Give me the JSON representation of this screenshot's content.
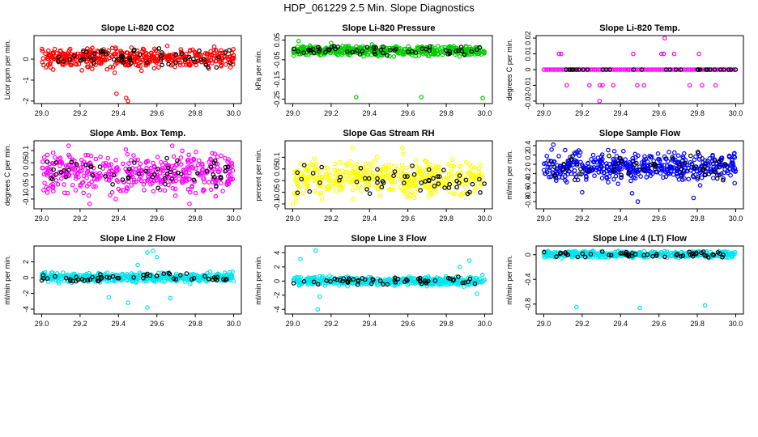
{
  "title": "HDP_061229  2.5 Min. Slope Diagnostics",
  "chart_data": [
    {
      "type": "scatter",
      "title": "Slope Li-820 CO2",
      "ylabel": "Licor ppm per min.",
      "color": "#ff0000",
      "xlim": [
        29.0,
        30.0
      ],
      "ylim": [
        -2.0,
        1.0
      ],
      "xticks": [
        29.0,
        29.2,
        29.4,
        29.6,
        29.8,
        30.0
      ],
      "yticks": [
        -2,
        -1,
        0
      ],
      "band": [
        -0.55,
        0.7
      ],
      "n": 420,
      "outliers": [
        [
          29.06,
          -0.5
        ],
        [
          29.38,
          -0.65
        ],
        [
          29.39,
          -1.65
        ],
        [
          29.44,
          -1.85
        ],
        [
          29.45,
          -2.0
        ],
        [
          29.52,
          -0.55
        ]
      ]
    },
    {
      "type": "scatter",
      "title": "Slope Li-820 Pressure",
      "ylabel": "kPa per min.",
      "color": "#00cc00",
      "xlim": [
        29.0,
        30.0
      ],
      "ylim": [
        -0.26,
        0.06
      ],
      "xticks": [
        29.0,
        29.2,
        29.4,
        29.6,
        29.8,
        30.0
      ],
      "yticks": [
        0.05,
        -0.05,
        -0.15,
        -0.25
      ],
      "band": [
        -0.04,
        0.03
      ],
      "n": 420,
      "outliers": [
        [
          29.33,
          -0.24
        ],
        [
          29.67,
          -0.24
        ],
        [
          29.99,
          -0.245
        ],
        [
          29.03,
          0.045
        ],
        [
          29.2,
          0.035
        ]
      ]
    },
    {
      "type": "scatter",
      "title": "Slope Li-820 Temp.",
      "ylabel": "degrees C per min.",
      "color": "#ff00ff",
      "xlim": [
        29.0,
        30.0
      ],
      "ylim": [
        -0.02,
        0.02
      ],
      "xticks": [
        29.0,
        29.2,
        29.4,
        29.6,
        29.8,
        30.0
      ],
      "yticks": [
        0.02,
        0.01,
        0.0,
        -0.01,
        -0.02
      ],
      "levels": [
        0.0,
        0.01,
        -0.01
      ],
      "n": 110,
      "outliers": [
        [
          29.29,
          -0.02
        ],
        [
          29.63,
          0.02
        ],
        [
          29.44,
          0.0
        ]
      ]
    },
    {
      "type": "scatter",
      "title": "Slope Amb. Box Temp.",
      "ylabel": "degrees C per min.",
      "color": "#ff00ff",
      "xlim": [
        29.0,
        30.0
      ],
      "ylim": [
        -0.13,
        0.13
      ],
      "xticks": [
        29.0,
        29.2,
        29.4,
        29.6,
        29.8,
        30.0
      ],
      "yticks": [
        0.1,
        0.05,
        0.0,
        -0.05,
        -0.1
      ],
      "band": [
        -0.1,
        0.11
      ],
      "n": 420,
      "outliers": [
        [
          29.14,
          0.12
        ],
        [
          29.68,
          0.12
        ],
        [
          29.25,
          -0.12
        ],
        [
          29.77,
          -0.12
        ]
      ]
    },
    {
      "type": "scatter",
      "title": "Slope Gas Stream RH",
      "ylabel": "percent per min.",
      "color": "#ffff00",
      "xlim": [
        29.0,
        30.0
      ],
      "ylim": [
        -0.11,
        0.16
      ],
      "xticks": [
        29.0,
        29.2,
        29.4,
        29.6,
        29.8,
        30.0
      ],
      "yticks": [
        0.1,
        0.05,
        0.0,
        -0.05,
        -0.1
      ],
      "band": [
        -0.09,
        0.11
      ],
      "n": 420,
      "outliers": [
        [
          29.57,
          0.14
        ],
        [
          29.31,
          0.14
        ],
        [
          29.0,
          -0.1
        ]
      ]
    },
    {
      "type": "scatter",
      "title": "Slope Sample Flow",
      "ylabel": "ml/min per min.",
      "color": "#0000ff",
      "xlim": [
        29.0,
        30.0
      ],
      "ylim": [
        -0.9,
        0.45
      ],
      "xticks": [
        29.0,
        29.2,
        29.4,
        29.6,
        29.8,
        30.0
      ],
      "yticks": [
        0.4,
        0.2,
        0.0,
        -0.2,
        -0.4,
        -0.6,
        -0.8
      ],
      "band": [
        -0.45,
        0.35
      ],
      "n": 460,
      "outliers": [
        [
          29.05,
          0.42
        ],
        [
          29.49,
          -0.8
        ],
        [
          29.46,
          -0.62
        ],
        [
          29.78,
          -0.72
        ],
        [
          29.2,
          -0.6
        ]
      ]
    },
    {
      "type": "scatter",
      "title": "Slope Line 2 Flow",
      "ylabel": "ml/min per min.",
      "color": "#00e5ee",
      "xlim": [
        29.0,
        30.0
      ],
      "ylim": [
        -4.3,
        3.7
      ],
      "xticks": [
        29.0,
        29.2,
        29.4,
        29.6,
        29.8,
        30.0
      ],
      "yticks": [
        2,
        0,
        -2,
        -4
      ],
      "band": [
        -0.8,
        0.8
      ],
      "n": 440,
      "outliers": [
        [
          29.55,
          3.2
        ],
        [
          29.58,
          3.4
        ],
        [
          29.6,
          2.6
        ],
        [
          29.55,
          -3.8
        ],
        [
          29.67,
          -2.6
        ],
        [
          29.35,
          -2.5
        ],
        [
          29.45,
          -3.2
        ],
        [
          29.5,
          1.6
        ]
      ]
    },
    {
      "type": "scatter",
      "title": "Slope Line 3 Flow",
      "ylabel": "ml/min per min.",
      "color": "#00e5ee",
      "xlim": [
        29.0,
        30.0
      ],
      "ylim": [
        -4.3,
        4.6
      ],
      "xticks": [
        29.0,
        29.2,
        29.4,
        29.6,
        29.8,
        30.0
      ],
      "yticks": [
        4,
        2,
        0,
        -2,
        -4
      ],
      "band": [
        -0.8,
        0.8
      ],
      "n": 440,
      "outliers": [
        [
          29.12,
          4.3
        ],
        [
          29.13,
          -4.0
        ],
        [
          29.04,
          3.1
        ],
        [
          29.92,
          2.9
        ],
        [
          29.87,
          2.0
        ],
        [
          29.96,
          -1.8
        ],
        [
          29.14,
          -2.2
        ]
      ]
    },
    {
      "type": "scatter",
      "title": "Slope Line 4 (LT) Flow",
      "ylabel": "ml/min per min.",
      "color": "#00e5ee",
      "xlim": [
        29.0,
        30.0
      ],
      "ylim": [
        -0.92,
        0.1
      ],
      "xticks": [
        29.0,
        29.2,
        29.4,
        29.6,
        29.8,
        30.0
      ],
      "yticks": [
        0.0,
        -0.4,
        -0.8
      ],
      "band": [
        -0.06,
        0.07
      ],
      "n": 440,
      "outliers": [
        [
          29.17,
          -0.85
        ],
        [
          29.5,
          -0.86
        ],
        [
          29.84,
          -0.82
        ]
      ]
    }
  ]
}
